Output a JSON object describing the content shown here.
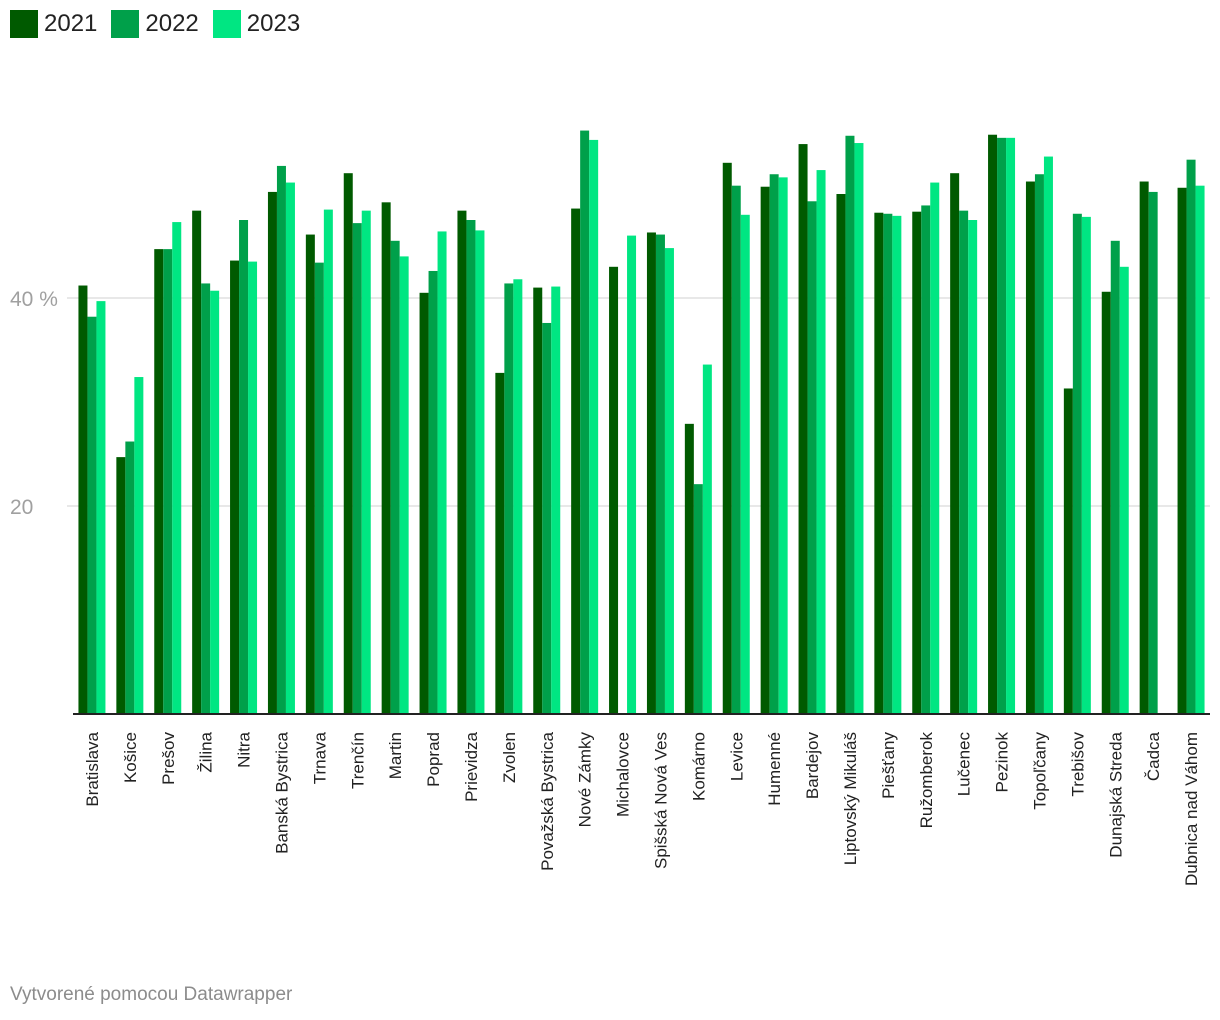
{
  "colors": {
    "s2021": "#005a00",
    "s2022": "#00a04a",
    "s2023": "#00e682",
    "grid": "#e0e0e0",
    "axis": "#222222"
  },
  "footer": {
    "credit": "Vytvorené pomocou Datawrapper"
  },
  "chart_data": {
    "type": "bar",
    "categories": [
      "Bratislava",
      "Košice",
      "Prešov",
      "Žilina",
      "Nitra",
      "Banská Bystrica",
      "Trnava",
      "Trenčín",
      "Martin",
      "Poprad",
      "Prievidza",
      "Zvolen",
      "Považská Bystrica",
      "Nové Zámky",
      "Michalovce",
      "Spišská Nová Ves",
      "Komárno",
      "Levice",
      "Humenné",
      "Bardejov",
      "Liptovský Mikuláš",
      "Piešťany",
      "Ružomberok",
      "Lučenec",
      "Pezinok",
      "Topoľčany",
      "Trebišov",
      "Dunajská Streda",
      "Čadca",
      "Dubnica nad Váhom"
    ],
    "series": [
      {
        "name": "2021",
        "values": [
          41.2,
          24.7,
          44.7,
          48.4,
          43.6,
          50.2,
          46.1,
          52.0,
          49.2,
          40.5,
          48.4,
          32.8,
          41.0,
          48.6,
          43.0,
          46.3,
          27.9,
          53.0,
          50.7,
          54.8,
          50.0,
          48.2,
          48.3,
          52.0,
          55.7,
          51.2,
          31.3,
          40.6,
          51.2,
          50.6
        ]
      },
      {
        "name": "2022",
        "values": [
          38.2,
          26.2,
          44.7,
          41.4,
          47.5,
          52.7,
          43.4,
          47.2,
          45.5,
          42.6,
          47.5,
          41.4,
          37.6,
          56.1,
          null,
          46.1,
          22.1,
          50.8,
          51.9,
          49.3,
          55.6,
          48.1,
          48.9,
          48.4,
          55.4,
          51.9,
          48.1,
          45.5,
          50.2,
          53.3
        ]
      },
      {
        "name": "2023",
        "values": [
          39.7,
          32.4,
          47.3,
          40.7,
          43.5,
          51.1,
          48.5,
          48.4,
          44.0,
          46.4,
          46.5,
          41.8,
          41.1,
          55.2,
          46.0,
          44.8,
          33.6,
          48.0,
          51.6,
          52.3,
          54.9,
          47.9,
          51.1,
          47.5,
          55.4,
          53.6,
          47.8,
          43.0,
          null,
          50.8
        ]
      }
    ],
    "yticks": [
      20,
      40
    ],
    "ytick_labels": [
      "20",
      "40 %"
    ],
    "ylim": [
      0,
      60
    ],
    "grid": true,
    "legend_position": "top-left"
  }
}
